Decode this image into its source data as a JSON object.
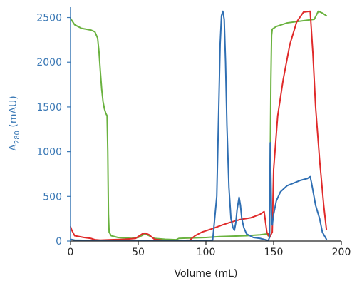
{
  "chart_data": {
    "type": "line",
    "xlabel": "Volume (mL)",
    "ylabel": {
      "prefix": "A",
      "subscript": "280",
      "suffix": " (mAU)"
    },
    "xlim": [
      0,
      200
    ],
    "ylim": [
      0,
      2600
    ],
    "x_ticks": [
      0,
      50,
      100,
      150,
      200
    ],
    "y_ticks": [
      0,
      500,
      1000,
      1500,
      2000,
      2500
    ],
    "colors": {
      "axis_y": "#3a78b5",
      "axis_x": "#222222",
      "y_tick_text": "#3a78b5",
      "x_tick_text": "#222222"
    },
    "grid": false,
    "legend": "none",
    "series": [
      {
        "color": "#6ab23f",
        "points": [
          [
            0,
            2490
          ],
          [
            3,
            2420
          ],
          [
            8,
            2380
          ],
          [
            15,
            2360
          ],
          [
            18,
            2340
          ],
          [
            20,
            2270
          ],
          [
            21,
            2120
          ],
          [
            22,
            1900
          ],
          [
            23,
            1700
          ],
          [
            24,
            1560
          ],
          [
            25,
            1480
          ],
          [
            26,
            1430
          ],
          [
            27,
            1400
          ],
          [
            27.5,
            1000
          ],
          [
            28,
            300
          ],
          [
            28.5,
            100
          ],
          [
            30,
            60
          ],
          [
            35,
            40
          ],
          [
            45,
            30
          ],
          [
            50,
            40
          ],
          [
            55,
            80
          ],
          [
            58,
            60
          ],
          [
            62,
            30
          ],
          [
            70,
            20
          ],
          [
            78,
            15
          ],
          [
            80,
            30
          ],
          [
            90,
            35
          ],
          [
            100,
            40
          ],
          [
            110,
            50
          ],
          [
            120,
            55
          ],
          [
            130,
            60
          ],
          [
            140,
            70
          ],
          [
            145,
            80
          ],
          [
            146,
            60
          ],
          [
            147,
            100
          ],
          [
            147.5,
            900
          ],
          [
            148,
            1800
          ],
          [
            148.5,
            2300
          ],
          [
            149,
            2370
          ],
          [
            152,
            2400
          ],
          [
            160,
            2440
          ],
          [
            170,
            2460
          ],
          [
            180,
            2480
          ],
          [
            183,
            2570
          ],
          [
            186,
            2550
          ],
          [
            189,
            2520
          ]
        ]
      },
      {
        "color": "#e02a2a",
        "points": [
          [
            0,
            160
          ],
          [
            1,
            120
          ],
          [
            3,
            60
          ],
          [
            10,
            40
          ],
          [
            15,
            30
          ],
          [
            18,
            15
          ],
          [
            22,
            10
          ],
          [
            30,
            15
          ],
          [
            40,
            20
          ],
          [
            48,
            30
          ],
          [
            53,
            80
          ],
          [
            55,
            90
          ],
          [
            58,
            70
          ],
          [
            62,
            20
          ],
          [
            70,
            5
          ],
          [
            80,
            5
          ],
          [
            88,
            10
          ],
          [
            92,
            60
          ],
          [
            97,
            100
          ],
          [
            105,
            140
          ],
          [
            112,
            180
          ],
          [
            118,
            210
          ],
          [
            125,
            240
          ],
          [
            133,
            260
          ],
          [
            140,
            300
          ],
          [
            143,
            330
          ],
          [
            145,
            100
          ],
          [
            147,
            40
          ],
          [
            149,
            100
          ],
          [
            150,
            800
          ],
          [
            153,
            1400
          ],
          [
            157,
            1800
          ],
          [
            162,
            2200
          ],
          [
            167,
            2450
          ],
          [
            172,
            2560
          ],
          [
            177,
            2570
          ],
          [
            179,
            2100
          ],
          [
            181,
            1500
          ],
          [
            184,
            900
          ],
          [
            187,
            400
          ],
          [
            189,
            130
          ]
        ]
      },
      {
        "color": "#2f6fb3",
        "points": [
          [
            0,
            20
          ],
          [
            3,
            10
          ],
          [
            20,
            5
          ],
          [
            40,
            5
          ],
          [
            55,
            5
          ],
          [
            70,
            5
          ],
          [
            90,
            5
          ],
          [
            100,
            5
          ],
          [
            105,
            10
          ],
          [
            108,
            500
          ],
          [
            109.5,
            1500
          ],
          [
            110.5,
            2200
          ],
          [
            111.5,
            2520
          ],
          [
            112.5,
            2570
          ],
          [
            113.5,
            2480
          ],
          [
            114.5,
            2000
          ],
          [
            115.5,
            1300
          ],
          [
            117,
            600
          ],
          [
            118.5,
            250
          ],
          [
            120,
            150
          ],
          [
            121,
            120
          ],
          [
            122,
            200
          ],
          [
            123,
            350
          ],
          [
            124.5,
            490
          ],
          [
            125.5,
            400
          ],
          [
            126.5,
            250
          ],
          [
            128,
            150
          ],
          [
            130,
            80
          ],
          [
            135,
            40
          ],
          [
            140,
            30
          ],
          [
            145,
            10
          ],
          [
            146,
            5
          ],
          [
            147,
            40
          ],
          [
            147.5,
            1100
          ],
          [
            148,
            700
          ],
          [
            148.5,
            200
          ],
          [
            149,
            180
          ],
          [
            150,
            300
          ],
          [
            152,
            450
          ],
          [
            155,
            550
          ],
          [
            160,
            620
          ],
          [
            170,
            680
          ],
          [
            175,
            700
          ],
          [
            177,
            720
          ],
          [
            178,
            650
          ],
          [
            181,
            400
          ],
          [
            184,
            250
          ],
          [
            186,
            100
          ],
          [
            189,
            20
          ]
        ]
      }
    ]
  }
}
